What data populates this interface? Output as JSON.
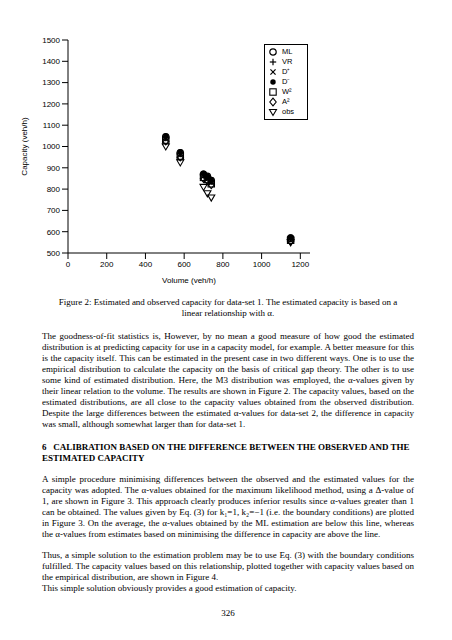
{
  "chart_data": {
    "type": "scatter",
    "xlabel": "Volume (veh/h)",
    "ylabel": "Capacity (veh/h)",
    "x": [
      505,
      580,
      700,
      720,
      740,
      1150
    ],
    "xlim": [
      0,
      1250
    ],
    "xticks": [
      0,
      200,
      400,
      600,
      800,
      1000,
      1200
    ],
    "ylim": [
      500,
      1500
    ],
    "yticks": [
      500,
      600,
      700,
      800,
      900,
      1000,
      1100,
      1200,
      1300,
      1400,
      1500
    ],
    "legend": "upper right",
    "grid": false,
    "series": [
      {
        "name": "ML",
        "color": "#000000",
        "marker": "circle",
        "values": [
          1045,
          970,
          870,
          860,
          840,
          570
        ]
      },
      {
        "name": "VR",
        "color": "#000000",
        "marker": "plus",
        "values": [
          1040,
          965,
          865,
          855,
          835,
          565
        ]
      },
      {
        "name": "D⁺",
        "color": "#000000",
        "marker": "x",
        "values": [
          1035,
          960,
          860,
          850,
          830,
          560
        ]
      },
      {
        "name": "D⁻",
        "color": "#000000",
        "marker": "dot",
        "values": [
          1050,
          975,
          875,
          862,
          845,
          575
        ]
      },
      {
        "name": "W²",
        "color": "#000000",
        "marker": "square",
        "values": [
          1030,
          955,
          855,
          845,
          825,
          560
        ]
      },
      {
        "name": "A²",
        "color": "#000000",
        "marker": "diamond",
        "values": [
          1025,
          950,
          850,
          840,
          820,
          555
        ]
      },
      {
        "name": "obs",
        "color": "#000000",
        "marker": "triangle_down",
        "values": [
          1000,
          925,
          810,
          780,
          760,
          550
        ]
      }
    ]
  },
  "document": {
    "caption": "Figure 2: Estimated and observed capacity for data-set 1. The estimated capacity is based on a linear relationship with α.",
    "paragraphs_1": [
      "The goodness-of-fit statistics is, However, by no mean a good measure of how good the estimated distribution is at predicting capacity for use in a capacity model, for example. A better measure for this is the capacity itself. This can be estimated in the present case in two different ways. One is to use the empirical distribution to calculate the capacity on the basis of critical gap theory. The other is to use some kind of estimated distribution. Here, the M3 distribution was employed, the α-values given by their linear relation to the volume. The results are shown in Figure 2. The capacity values, based on the estimated distributions, are all close to the capacity values obtained from the observed distribution. Despite the large differences between the estimated α-values for data-set 2, the difference in capacity was small, although somewhat larger than for data-set 1."
    ],
    "heading": "6   CALIBRATION BASED ON THE DIFFERENCE BETWEEN THE OBSERVED AND THE ESTIMATED CAPACITY",
    "paragraphs_2": [
      "A simple procedure minimising differences between the observed and the estimated values for the capacity was adopted. The α-values obtained for the maximum likelihood method, using a Δ-value of 1, are shown in Figure 3. This approach clearly produces inferior results since α-values greater than 1 can be obtained. The values given by Eq. (3) for k₁=1, k₂=−1 (i.e. the boundary conditions) are plotted in Figure 3. On the average, the α-values obtained by the ML estimation are below this line, whereas the α-values from estimates based on minimising the difference in capacity are above the line.",
      "Thus, a simple solution to the estimation problem may be to use Eq. (3) with the boundary conditions fulfilled. The capacity values based on this relationship, plotted together with capacity values based on the empirical distribution, are shown in Figure 4."
    ],
    "last_line": "This simple solution obviously provides a good estimation of capacity.",
    "page_number": "326"
  }
}
